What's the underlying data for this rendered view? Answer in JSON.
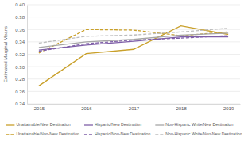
{
  "chart_data": {
    "type": "line",
    "y_label": "Estimated Marginal Means",
    "categories": [
      "2015",
      "2016",
      "2017",
      "2018",
      "2019"
    ],
    "ylim": [
      0.24,
      0.4
    ],
    "yticks": [
      0.24,
      0.26,
      0.28,
      {
        "value": 0.3,
        "label": "0.30"
      },
      0.32,
      0.34,
      0.36,
      0.38,
      {
        "value": 0.4,
        "label": "0.40"
      }
    ],
    "grid": true,
    "legend": "bottom",
    "series": [
      {
        "name": "Unattainable/New Destination",
        "color": "#c9a02a",
        "line_style": "solid",
        "values": [
          0.269,
          0.321,
          0.328,
          0.366,
          0.352
        ]
      },
      {
        "name": "Unattainable/Non-New Destination",
        "color": "#c9a02a",
        "line_style": "dashed",
        "values": [
          0.322,
          0.36,
          0.359,
          0.35,
          0.356
        ]
      },
      {
        "name": "Hispanic/New Destination",
        "color": "#7f5fa8",
        "line_style": "solid",
        "values": [
          0.327,
          0.335,
          0.341,
          0.348,
          0.348
        ]
      },
      {
        "name": "Hispanic/Non-New Destination",
        "color": "#7f5fa8",
        "line_style": "dashed",
        "values": [
          0.325,
          0.337,
          0.343,
          0.346,
          0.35
        ]
      },
      {
        "name": "Non-Hispanic White/New Destination",
        "color": "#a6a6a6",
        "line_style": "solid",
        "values": [
          0.331,
          0.34,
          0.344,
          0.351,
          0.354
        ]
      },
      {
        "name": "Non-Hispanic White/Non-New Destination",
        "color": "#bdbdbd",
        "line_style": "dashed",
        "values": [
          0.338,
          0.349,
          0.351,
          0.356,
          0.362
        ]
      }
    ]
  }
}
